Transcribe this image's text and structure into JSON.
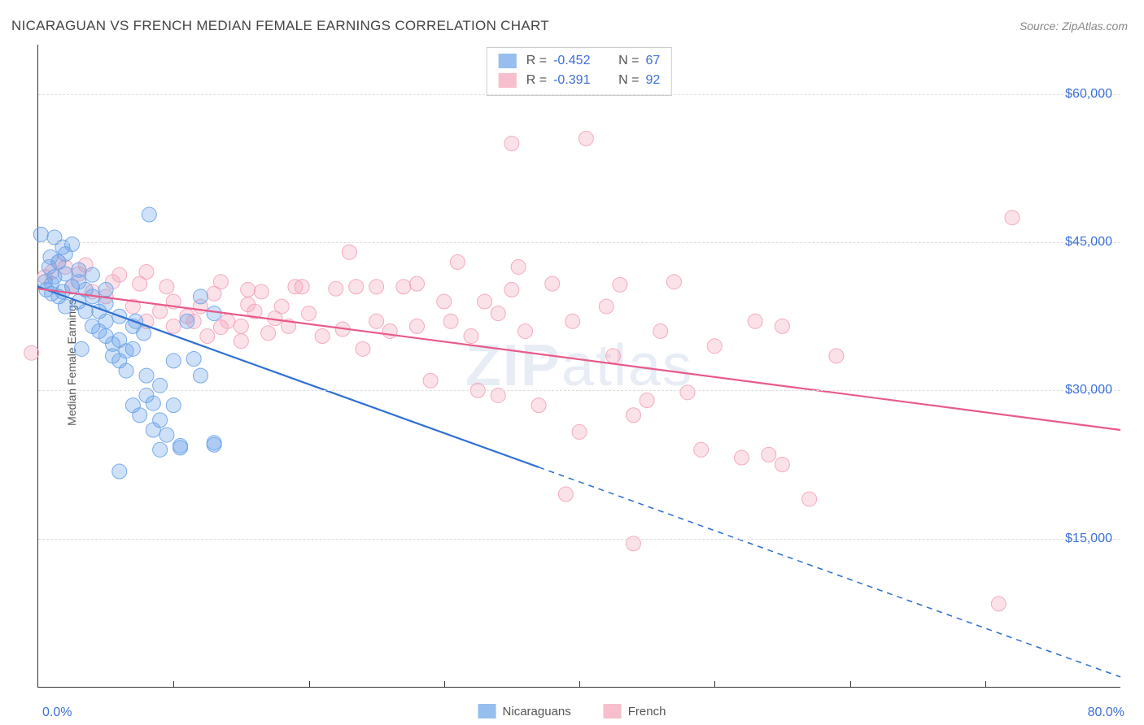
{
  "title": "NICARAGUAN VS FRENCH MEDIAN FEMALE EARNINGS CORRELATION CHART",
  "source": "Source: ZipAtlas.com",
  "watermark": "ZIPatlas",
  "chart": {
    "type": "scatter",
    "background_color": "#ffffff",
    "grid_color": "#dddddd",
    "grid_dash": "4,4",
    "axis_color": "#333333",
    "ylabel": "Median Female Earnings",
    "ylabel_fontsize": 14,
    "xlim": [
      0,
      80
    ],
    "ylim": [
      0,
      65000
    ],
    "xtick_left": "0.0%",
    "xtick_right": "80.0%",
    "x_minor_ticks": [
      10,
      20,
      30,
      40,
      50,
      60,
      70
    ],
    "yticks": [
      {
        "v": 15000,
        "label": "$15,000"
      },
      {
        "v": 30000,
        "label": "$30,000"
      },
      {
        "v": 45000,
        "label": "$45,000"
      },
      {
        "v": 60000,
        "label": "$60,000"
      }
    ],
    "tick_color": "#3b6fd8",
    "tick_fontsize": 16,
    "marker_radius": 9,
    "marker_fill_opacity": 0.32,
    "marker_stroke_opacity": 0.9,
    "marker_stroke_width": 1,
    "line_width": 2.2,
    "series": [
      {
        "id": "nicaraguans",
        "label": "Nicaraguans",
        "color": "#6aa3e8",
        "line_color": "#2f6fd3",
        "R": "-0.452",
        "N": "67",
        "regression": {
          "x1": 0,
          "y1": 40500,
          "x2": 80,
          "y2": 1000,
          "solid_until_x": 37
        },
        "points": [
          [
            0.5,
            41000
          ],
          [
            0.6,
            40200
          ],
          [
            0.8,
            42500
          ],
          [
            1.0,
            40800
          ],
          [
            1.0,
            39800
          ],
          [
            1.2,
            41500
          ],
          [
            1.2,
            45500
          ],
          [
            0.2,
            45800
          ],
          [
            1.5,
            39500
          ],
          [
            1.5,
            43000
          ],
          [
            1.8,
            40000
          ],
          [
            2.0,
            41800
          ],
          [
            2.0,
            38500
          ],
          [
            2.0,
            43800
          ],
          [
            2.5,
            40500
          ],
          [
            2.5,
            44800
          ],
          [
            3.0,
            39000
          ],
          [
            3.0,
            41000
          ],
          [
            3.0,
            42200
          ],
          [
            3.5,
            38000
          ],
          [
            3.5,
            40200
          ],
          [
            4.0,
            39500
          ],
          [
            4.0,
            36500
          ],
          [
            4.0,
            41700
          ],
          [
            4.5,
            36000
          ],
          [
            4.5,
            38000
          ],
          [
            5.0,
            35500
          ],
          [
            5.0,
            37000
          ],
          [
            5.0,
            38800
          ],
          [
            5.0,
            40200
          ],
          [
            5.5,
            33500
          ],
          [
            5.5,
            34700
          ],
          [
            6.0,
            33000
          ],
          [
            6.0,
            37500
          ],
          [
            6.0,
            35100
          ],
          [
            6.5,
            34000
          ],
          [
            6.5,
            32000
          ],
          [
            7.0,
            36500
          ],
          [
            7.0,
            34200
          ],
          [
            7.0,
            28500
          ],
          [
            7.5,
            27500
          ],
          [
            7.8,
            35800
          ],
          [
            8.0,
            31500
          ],
          [
            8.0,
            29500
          ],
          [
            8.5,
            26000
          ],
          [
            8.5,
            28700
          ],
          [
            8.2,
            47800
          ],
          [
            9.0,
            30500
          ],
          [
            9.0,
            27000
          ],
          [
            9.0,
            24000
          ],
          [
            9.5,
            25500
          ],
          [
            10.0,
            33000
          ],
          [
            10.0,
            28500
          ],
          [
            10.5,
            24200
          ],
          [
            10.5,
            24400
          ],
          [
            11.0,
            37000
          ],
          [
            11.5,
            33200
          ],
          [
            12.0,
            39500
          ],
          [
            12.0,
            31500
          ],
          [
            13.0,
            24500
          ],
          [
            13.0,
            24700
          ],
          [
            13.0,
            37800
          ],
          [
            6.0,
            21800
          ],
          [
            7.2,
            37000
          ],
          [
            3.2,
            34200
          ],
          [
            1.8,
            44500
          ],
          [
            0.9,
            43500
          ]
        ]
      },
      {
        "id": "french",
        "label": "French",
        "color": "#f4a3b8",
        "line_color": "#e85a8a",
        "R": "-0.391",
        "N": "92",
        "regression": {
          "x1": 0,
          "y1": 40300,
          "x2": 80,
          "y2": 26000,
          "solid_until_x": 80
        },
        "points": [
          [
            -0.5,
            33800
          ],
          [
            0.5,
            41500
          ],
          [
            1.0,
            42000
          ],
          [
            1.5,
            43000
          ],
          [
            2.0,
            42500
          ],
          [
            2.5,
            40500
          ],
          [
            3.0,
            41800
          ],
          [
            3.5,
            42700
          ],
          [
            4.0,
            40000
          ],
          [
            5.0,
            39500
          ],
          [
            5.5,
            41000
          ],
          [
            6.0,
            41700
          ],
          [
            7.0,
            38500
          ],
          [
            7.5,
            40800
          ],
          [
            8.0,
            42000
          ],
          [
            8.0,
            37000
          ],
          [
            9.0,
            38000
          ],
          [
            9.5,
            40500
          ],
          [
            10.0,
            36500
          ],
          [
            10.0,
            39000
          ],
          [
            11.0,
            37500
          ],
          [
            11.5,
            37000
          ],
          [
            12.0,
            38500
          ],
          [
            12.5,
            35500
          ],
          [
            13.0,
            39800
          ],
          [
            13.5,
            36400
          ],
          [
            13.5,
            41000
          ],
          [
            14.0,
            37000
          ],
          [
            15.0,
            35000
          ],
          [
            15.0,
            36500
          ],
          [
            15.5,
            40200
          ],
          [
            15.5,
            38700
          ],
          [
            16.0,
            38000
          ],
          [
            16.5,
            40000
          ],
          [
            17.0,
            35800
          ],
          [
            17.5,
            37300
          ],
          [
            18.0,
            38500
          ],
          [
            18.5,
            36500
          ],
          [
            19.0,
            40500
          ],
          [
            19.5,
            40500
          ],
          [
            20.0,
            37800
          ],
          [
            21.0,
            35500
          ],
          [
            22.0,
            40300
          ],
          [
            22.5,
            36200
          ],
          [
            23.0,
            44000
          ],
          [
            23.5,
            40500
          ],
          [
            24.0,
            34200
          ],
          [
            25.0,
            40500
          ],
          [
            25.0,
            37000
          ],
          [
            26.0,
            36000
          ],
          [
            27.0,
            40500
          ],
          [
            28.0,
            36500
          ],
          [
            28.0,
            40800
          ],
          [
            29.0,
            31000
          ],
          [
            30.0,
            39000
          ],
          [
            30.5,
            37000
          ],
          [
            31.0,
            43000
          ],
          [
            32.0,
            35500
          ],
          [
            32.5,
            30000
          ],
          [
            33.0,
            39000
          ],
          [
            34.0,
            29500
          ],
          [
            34.0,
            37800
          ],
          [
            35.0,
            40200
          ],
          [
            35.0,
            55000
          ],
          [
            35.5,
            42500
          ],
          [
            36.0,
            36000
          ],
          [
            37.0,
            28500
          ],
          [
            38.0,
            40800
          ],
          [
            39.0,
            19500
          ],
          [
            39.5,
            37000
          ],
          [
            40.0,
            25800
          ],
          [
            40.5,
            55500
          ],
          [
            42.0,
            38500
          ],
          [
            42.5,
            33500
          ],
          [
            43.0,
            40700
          ],
          [
            44.0,
            27500
          ],
          [
            44.0,
            14500
          ],
          [
            45.0,
            29000
          ],
          [
            46.0,
            36000
          ],
          [
            47.0,
            41000
          ],
          [
            48.0,
            29800
          ],
          [
            49.0,
            24000
          ],
          [
            50.0,
            34500
          ],
          [
            52.0,
            23200
          ],
          [
            53.0,
            37000
          ],
          [
            54.0,
            23500
          ],
          [
            55.0,
            22500
          ],
          [
            55.0,
            36500
          ],
          [
            57.0,
            19000
          ],
          [
            59.0,
            33500
          ],
          [
            71.0,
            8400
          ],
          [
            72.0,
            47500
          ]
        ]
      }
    ]
  }
}
